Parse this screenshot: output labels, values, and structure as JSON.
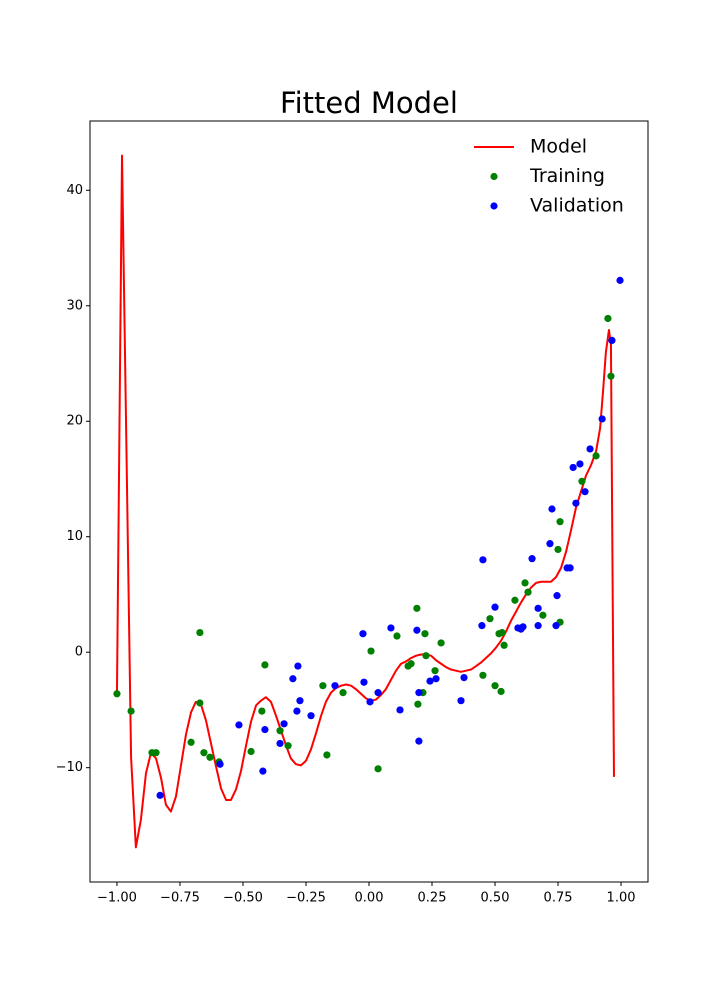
{
  "chart_data": {
    "type": "line",
    "title": "Fitted Model",
    "xlim": [
      -1.107,
      1.107
    ],
    "ylim": [
      -19.9,
      46
    ],
    "xticks": [
      {
        "value": -1,
        "label": "−1.00"
      },
      {
        "value": -0.75,
        "label": "−0.75"
      },
      {
        "value": -0.5,
        "label": "−0.50"
      },
      {
        "value": -0.25,
        "label": "−0.25"
      },
      {
        "value": 0,
        "label": "0.00"
      },
      {
        "value": 0.25,
        "label": "0.25"
      },
      {
        "value": 0.5,
        "label": "0.50"
      },
      {
        "value": 0.75,
        "label": "0.75"
      },
      {
        "value": 1,
        "label": "1.00"
      }
    ],
    "yticks": [
      {
        "value": -10,
        "label": "−10"
      },
      0,
      10,
      20,
      30,
      40
    ],
    "legend": "upper right",
    "series": [
      {
        "name": "Model",
        "kind": "line",
        "color": "#ff0000",
        "x": [
          -1.0,
          -0.98,
          -0.944,
          -0.925,
          -0.905,
          -0.885,
          -0.865,
          -0.845,
          -0.825,
          -0.806,
          -0.786,
          -0.766,
          -0.746,
          -0.726,
          -0.706,
          -0.687,
          -0.667,
          -0.647,
          -0.627,
          -0.607,
          -0.587,
          -0.567,
          -0.548,
          -0.528,
          -0.508,
          -0.488,
          -0.468,
          -0.448,
          -0.429,
          -0.409,
          -0.389,
          -0.369,
          -0.349,
          -0.329,
          -0.31,
          -0.29,
          -0.27,
          -0.25,
          -0.23,
          -0.21,
          -0.19,
          -0.171,
          -0.151,
          -0.131,
          -0.111,
          -0.091,
          -0.071,
          -0.052,
          -0.032,
          -0.012,
          0.008,
          0.028,
          0.048,
          0.067,
          0.087,
          0.107,
          0.127,
          0.147,
          0.167,
          0.187,
          0.206,
          0.226,
          0.246,
          0.266,
          0.286,
          0.306,
          0.325,
          0.345,
          0.365,
          0.385,
          0.405,
          0.425,
          0.444,
          0.464,
          0.484,
          0.504,
          0.524,
          0.544,
          0.563,
          0.583,
          0.603,
          0.623,
          0.643,
          0.663,
          0.683,
          0.702,
          0.722,
          0.742,
          0.762,
          0.782,
          0.802,
          0.821,
          0.841,
          0.861,
          0.881,
          0.901,
          0.917,
          0.929,
          0.94,
          0.952,
          0.96,
          0.972
        ],
        "values": [
          -3.5,
          43,
          -9.1,
          -16.9,
          -14.5,
          -10.5,
          -8.7,
          -9.2,
          -10.9,
          -13.2,
          -13.8,
          -12.5,
          -9.8,
          -7.1,
          -5.2,
          -4.3,
          -4.5,
          -5.9,
          -7.9,
          -9.9,
          -11.8,
          -12.8,
          -12.8,
          -11.9,
          -10.3,
          -8.1,
          -6.0,
          -4.6,
          -4.2,
          -3.9,
          -4.3,
          -5.5,
          -6.8,
          -8.1,
          -9.2,
          -9.7,
          -9.8,
          -9.4,
          -8.4,
          -7.0,
          -5.5,
          -4.3,
          -3.5,
          -3.1,
          -2.9,
          -2.8,
          -2.9,
          -3.2,
          -3.6,
          -4.0,
          -4.2,
          -4.1,
          -3.7,
          -3.2,
          -2.4,
          -1.6,
          -1.0,
          -0.8,
          -0.5,
          -0.3,
          -0.2,
          -0.2,
          -0.3,
          -0.7,
          -1.0,
          -1.3,
          -1.5,
          -1.6,
          -1.7,
          -1.6,
          -1.5,
          -1.2,
          -0.9,
          -0.5,
          -0.1,
          0.4,
          1.0,
          1.8,
          2.7,
          3.5,
          4.3,
          5.0,
          5.6,
          6.0,
          6.1,
          6.1,
          6.1,
          6.5,
          7.3,
          8.7,
          10.6,
          12.5,
          13.9,
          15.3,
          16.2,
          17.4,
          19.4,
          22.7,
          26.0,
          27.9,
          26.6,
          -10.8
        ]
      },
      {
        "name": "Training",
        "kind": "scatter",
        "color": "#008000",
        "x": [
          -1.0,
          -0.944,
          -0.861,
          -0.845,
          -0.671,
          -0.671,
          -0.706,
          -0.655,
          -0.631,
          -0.595,
          -0.468,
          -0.425,
          -0.413,
          -0.353,
          -0.321,
          -0.183,
          -0.167,
          -0.103,
          0.008,
          0.036,
          0.111,
          0.155,
          0.167,
          0.19,
          0.194,
          0.214,
          0.222,
          0.226,
          0.262,
          0.286,
          0.452,
          0.48,
          0.5,
          0.516,
          0.528,
          0.524,
          0.536,
          0.579,
          0.619,
          0.631,
          0.69,
          0.75,
          0.758,
          0.758,
          0.845,
          0.901,
          0.948,
          0.96
        ],
        "values": [
          -3.6,
          -5.1,
          -8.7,
          -8.7,
          1.7,
          -4.4,
          -7.8,
          -8.7,
          -9.1,
          -9.5,
          -8.6,
          -5.1,
          -1.1,
          -6.8,
          -8.1,
          -2.9,
          -8.9,
          -3.5,
          0.1,
          -10.1,
          1.4,
          -1.2,
          -1.0,
          3.8,
          -4.5,
          -3.5,
          1.6,
          -0.3,
          -1.6,
          0.8,
          -2.0,
          2.9,
          -2.9,
          1.6,
          1.7,
          -3.4,
          0.6,
          4.5,
          6.0,
          5.2,
          3.2,
          8.9,
          11.3,
          2.6,
          14.8,
          17.0,
          28.9,
          23.9
        ]
      },
      {
        "name": "Validation",
        "kind": "scatter",
        "color": "#0000ff",
        "x": [
          -0.829,
          -0.591,
          -0.516,
          -0.421,
          -0.413,
          -0.353,
          -0.337,
          -0.302,
          -0.286,
          -0.282,
          -0.274,
          -0.23,
          -0.135,
          -0.024,
          -0.02,
          0.004,
          0.036,
          0.087,
          0.123,
          0.19,
          0.198,
          0.198,
          0.242,
          0.266,
          0.365,
          0.377,
          0.448,
          0.452,
          0.5,
          0.591,
          0.603,
          0.611,
          0.647,
          0.671,
          0.671,
          0.718,
          0.726,
          0.742,
          0.746,
          0.786,
          0.798,
          0.81,
          0.821,
          0.837,
          0.857,
          0.877,
          0.925,
          0.964,
          0.996
        ],
        "values": [
          -12.4,
          -9.7,
          -6.3,
          -10.3,
          -6.7,
          -7.9,
          -6.2,
          -2.3,
          -5.1,
          -1.2,
          -4.2,
          -5.5,
          -2.9,
          1.6,
          -2.6,
          -4.3,
          -3.5,
          2.1,
          -5.0,
          1.9,
          -3.5,
          -7.7,
          -2.5,
          -2.3,
          -4.2,
          -2.2,
          2.3,
          8.0,
          3.9,
          2.1,
          2.0,
          2.2,
          8.1,
          3.8,
          2.3,
          9.4,
          12.4,
          2.3,
          4.9,
          7.3,
          7.3,
          16.0,
          12.9,
          16.3,
          13.9,
          17.6,
          20.2,
          27.0,
          32.2
        ]
      }
    ]
  }
}
